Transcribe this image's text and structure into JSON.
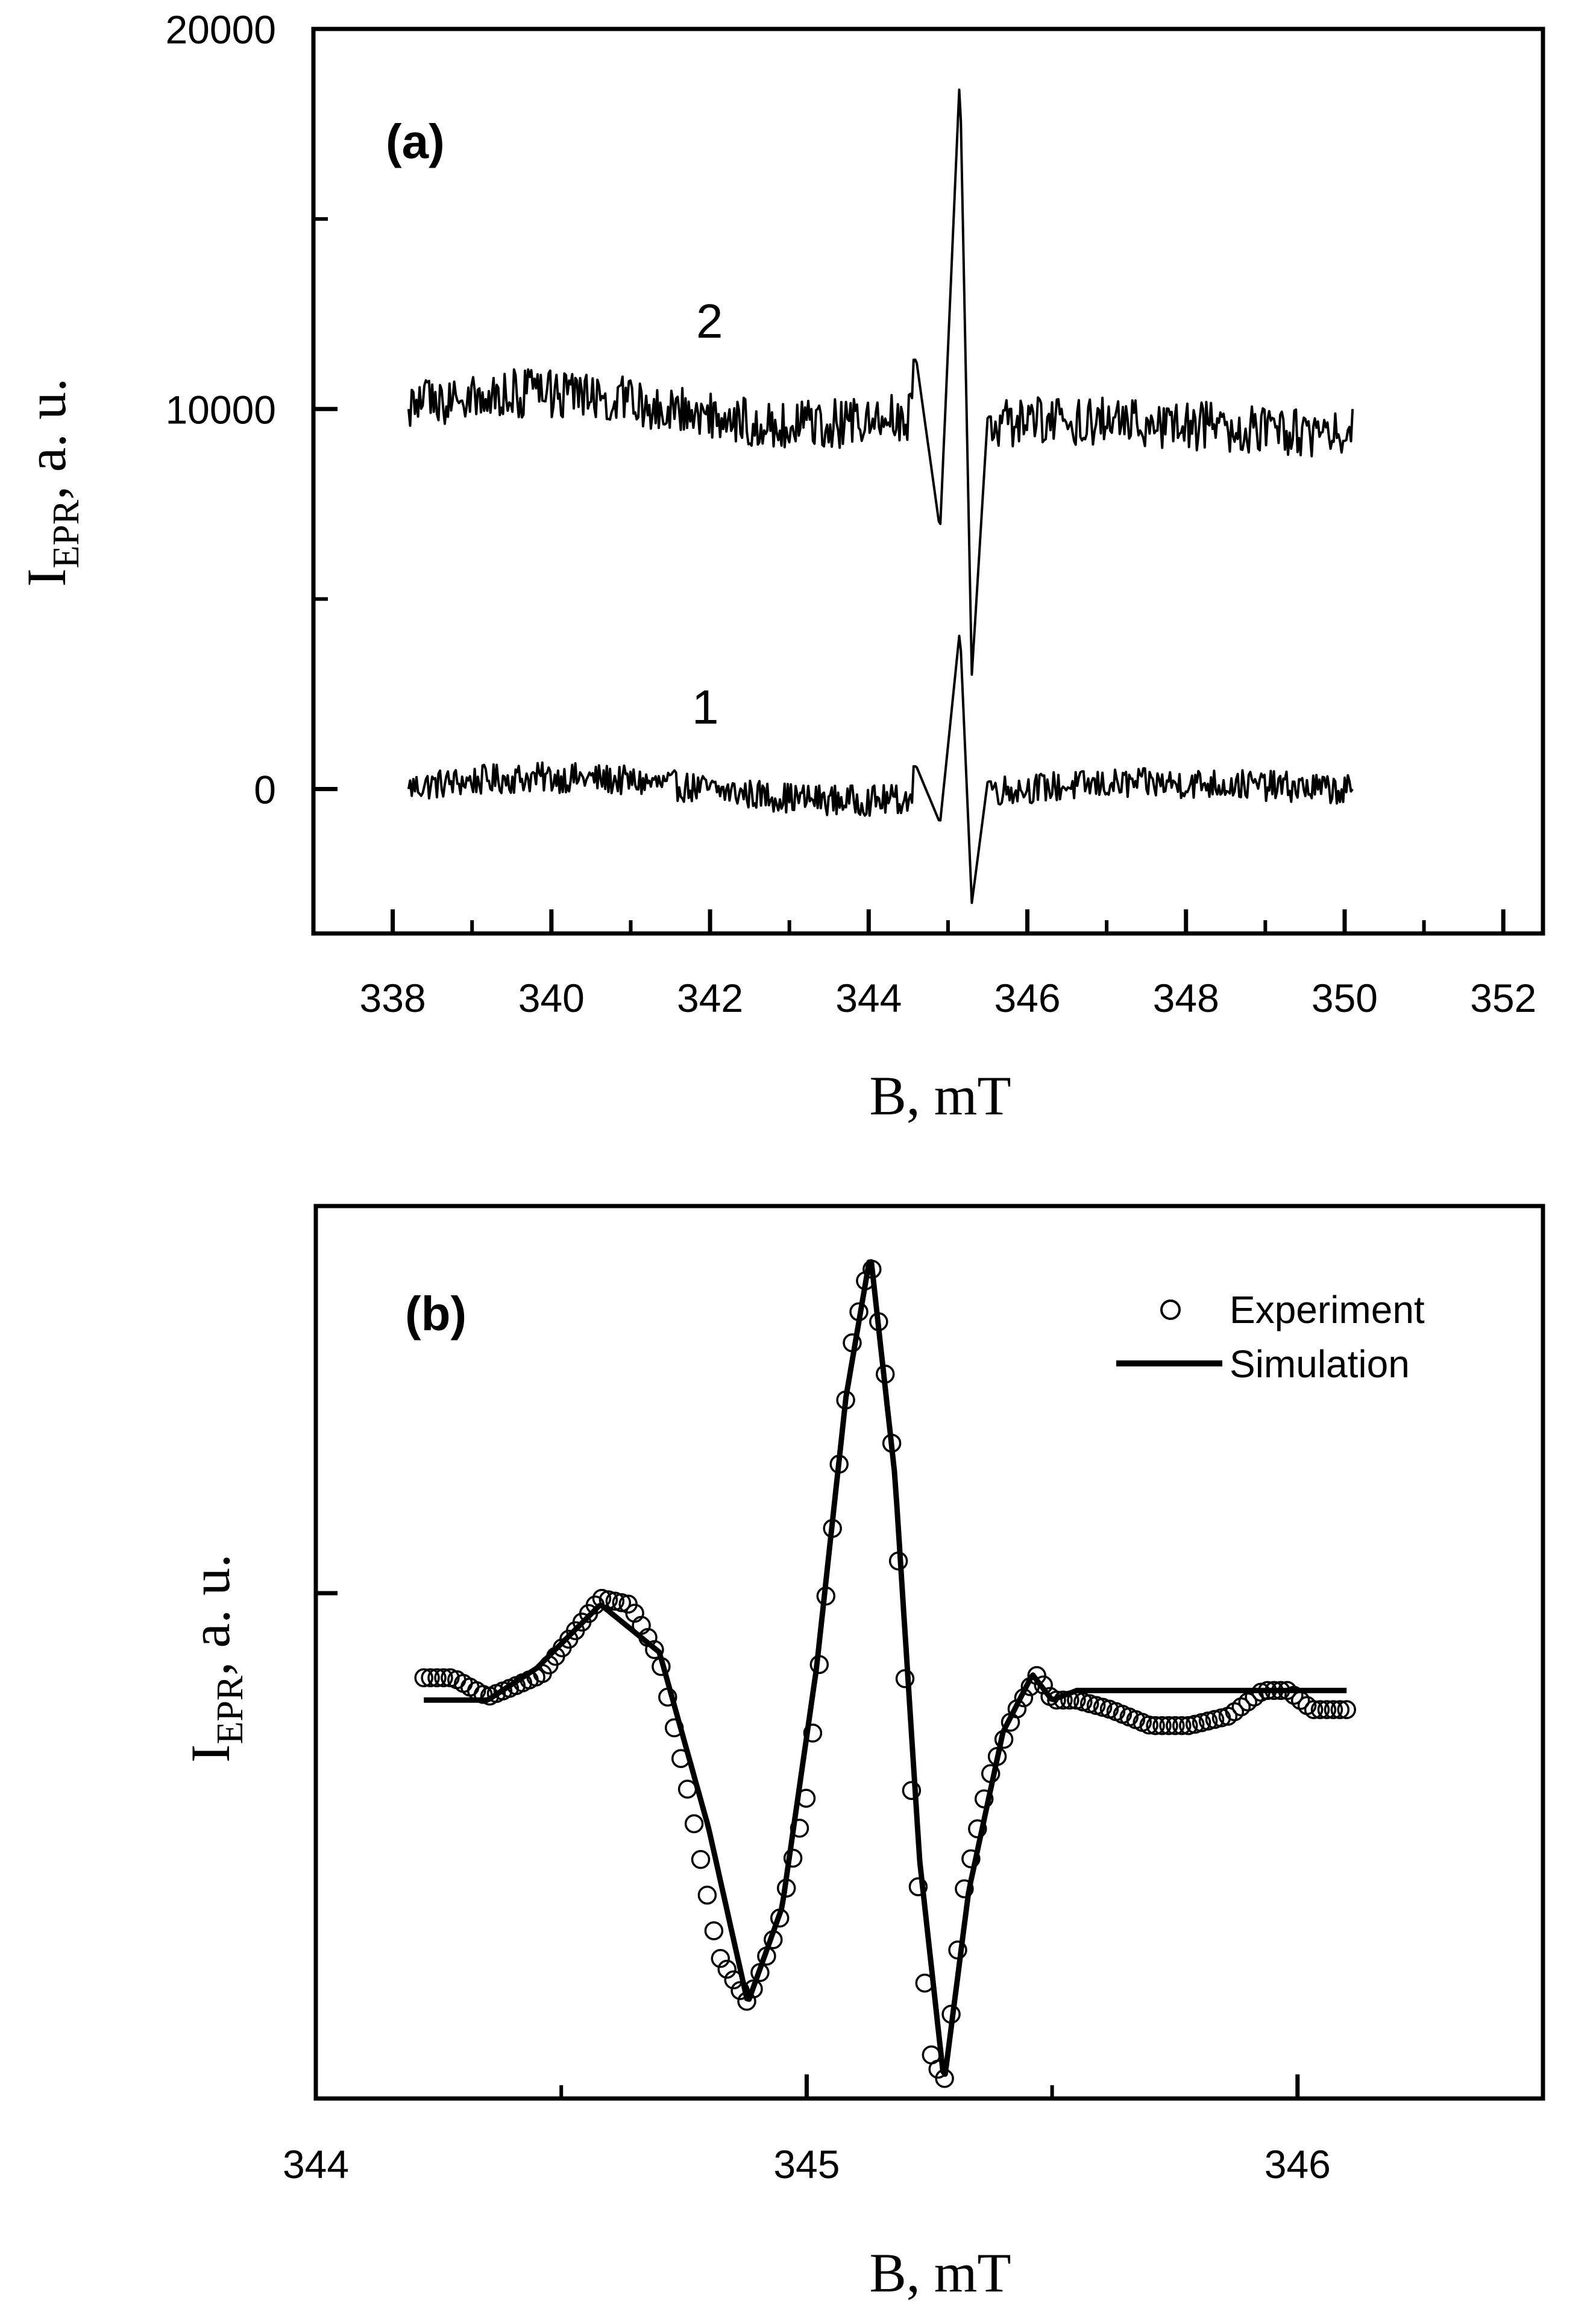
{
  "chart_data": [
    {
      "panel": "(a)",
      "type": "line",
      "xlabel": "B, mT",
      "ylabel_main": "I",
      "ylabel_sub": "EPR",
      "ylabel_rest": ", a. u.",
      "xlim": [
        337,
        352.5
      ],
      "ylim": [
        -3800,
        20000
      ],
      "xticks": [
        338,
        340,
        342,
        344,
        346,
        348,
        350,
        352
      ],
      "xtick_labels": [
        "338",
        "340",
        "342",
        "344",
        "346",
        "348",
        "350",
        "352"
      ],
      "yticks": [
        0,
        10000,
        20000
      ],
      "ytick_labels": [
        "0",
        "10000",
        "20000"
      ],
      "series": [
        {
          "name": "1",
          "baseline": 0,
          "line_x": [
            338.2,
            344.6,
            344.9,
            345.15,
            345.3,
            345.5,
            350.1
          ],
          "line_y": [
            0,
            600,
            -900,
            4200,
            -3000,
            200,
            0
          ]
        },
        {
          "name": "2",
          "baseline": 10000,
          "line_x": [
            338.2,
            344.6,
            344.9,
            345.15,
            345.3,
            345.5,
            350.1
          ],
          "line_y": [
            10000,
            11300,
            6800,
            18800,
            3000,
            9800,
            10000
          ]
        }
      ],
      "curve_labels": [
        "2",
        "1"
      ]
    },
    {
      "panel": "(b)",
      "type": "line",
      "xlabel": "B, mT",
      "ylabel_main": "I",
      "ylabel_sub": "EPR",
      "ylabel_rest": ", a. u.",
      "xlim": [
        344,
        346.5
      ],
      "ylim": [
        -1.25,
        1.55
      ],
      "xticks": [
        344,
        345,
        346
      ],
      "xtick_labels": [
        "344",
        "345",
        "346"
      ],
      "legend": [
        "Experiment",
        "Simulation"
      ],
      "series": [
        {
          "name": "Simulation",
          "x": [
            344.22,
            344.35,
            344.45,
            344.58,
            344.7,
            344.8,
            344.88,
            344.95,
            345.02,
            345.08,
            345.13,
            345.18,
            345.23,
            345.28,
            345.33,
            345.4,
            345.46,
            345.5,
            345.55,
            345.7,
            346.1
          ],
          "y": [
            0.0,
            0.0,
            0.1,
            0.3,
            0.15,
            -0.4,
            -0.95,
            -0.65,
            0.1,
            0.95,
            1.4,
            0.7,
            -0.5,
            -1.2,
            -0.6,
            -0.1,
            0.08,
            0.0,
            0.03,
            0.03,
            0.03
          ]
        },
        {
          "name": "Experiment",
          "x": [
            344.22,
            344.28,
            344.35,
            344.4,
            344.46,
            344.52,
            344.58,
            344.64,
            344.7,
            344.76,
            344.82,
            344.88,
            344.94,
            345.0,
            345.05,
            345.09,
            345.13,
            345.17,
            345.21,
            345.25,
            345.28,
            345.32,
            345.37,
            345.42,
            345.47,
            345.5,
            345.55,
            345.62,
            345.7,
            345.78,
            345.86,
            345.93,
            345.98,
            346.03,
            346.1
          ],
          "y": [
            0.07,
            0.07,
            0.01,
            0.04,
            0.08,
            0.2,
            0.32,
            0.3,
            0.13,
            -0.3,
            -0.8,
            -0.95,
            -0.72,
            -0.3,
            0.5,
            1.1,
            1.39,
            0.9,
            -0.2,
            -1.1,
            -1.2,
            -0.6,
            -0.25,
            -0.05,
            0.08,
            0.0,
            0.0,
            -0.03,
            -0.08,
            -0.08,
            -0.05,
            0.03,
            0.03,
            -0.03,
            -0.03
          ]
        }
      ]
    }
  ]
}
